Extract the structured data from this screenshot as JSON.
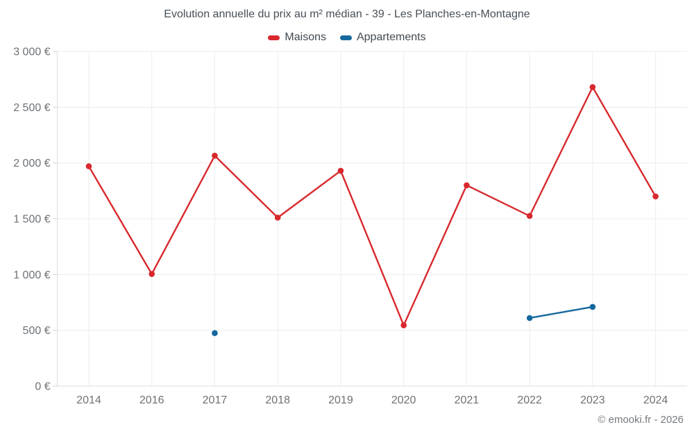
{
  "title": "Evolution annuelle du prix au m² médian - 39 - Les Planches-en-Montagne",
  "watermark": "© emooki.fr - 2026",
  "legend": {
    "items": [
      {
        "label": "Maisons",
        "color": "#d8282d"
      },
      {
        "label": "Appartements",
        "color": "#15689e"
      }
    ]
  },
  "colors": {
    "grid": "#ececec",
    "axis": "#dcdcdc",
    "tick": "#cccccc",
    "title_text": "#474f57",
    "tick_text": "#6d7175",
    "watermark_text": "#75797d"
  },
  "chart_data": {
    "type": "line",
    "title": "Evolution annuelle du prix au m² médian - 39 - Les Planches-en-Montagne",
    "xlabel": "",
    "ylabel": "",
    "categories": [
      "2014",
      "2016",
      "2017",
      "2018",
      "2019",
      "2020",
      "2021",
      "2022",
      "2023",
      "2024"
    ],
    "series": [
      {
        "name": "Maisons",
        "color": "#d8282d",
        "values": [
          1970,
          1005,
          2065,
          1510,
          1930,
          545,
          1800,
          1525,
          2680,
          1700
        ]
      },
      {
        "name": "Appartements",
        "color": "#15689e",
        "values": [
          null,
          null,
          475,
          null,
          null,
          null,
          null,
          610,
          710,
          null
        ]
      }
    ],
    "ylim": [
      0,
      3000
    ],
    "y_ticks": [
      0,
      500,
      1000,
      1500,
      2000,
      2500,
      3000
    ],
    "y_tick_labels": [
      "0 €",
      "500 €",
      "1 000 €",
      "1 500 €",
      "2 000 €",
      "2 500 €",
      "3 000 €"
    ],
    "grid": true,
    "legend_position": "top"
  }
}
